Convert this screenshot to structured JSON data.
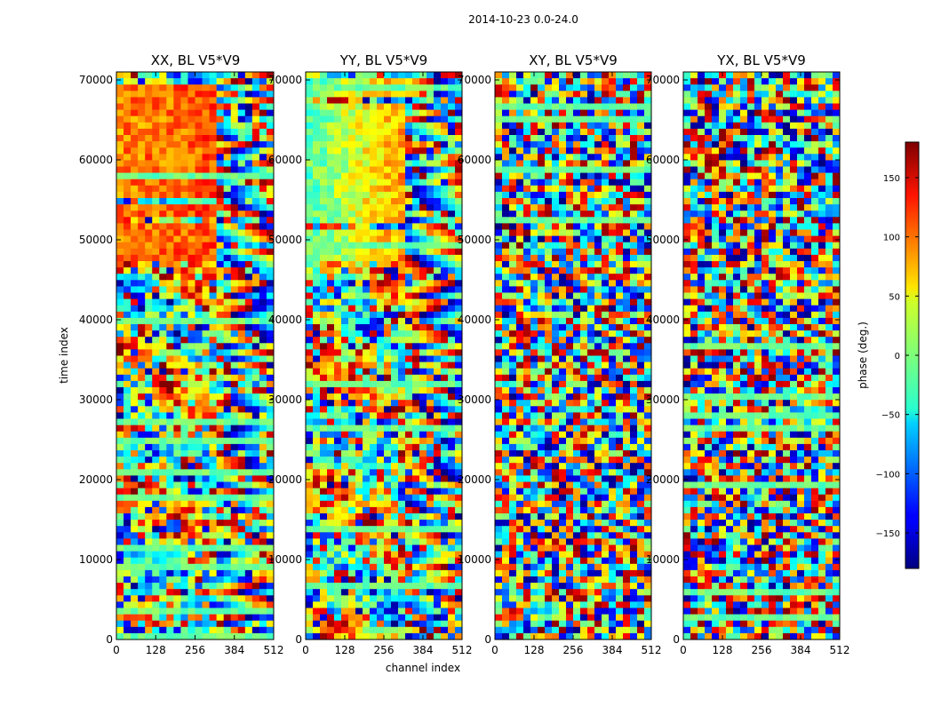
{
  "chart_data": {
    "type": "heatmap",
    "suptitle": "2014-10-23 0.0-24.0",
    "xlabel": "channel index",
    "ylabel": "time index",
    "xlim": [
      0,
      512
    ],
    "ylim": [
      0,
      71000
    ],
    "x_ticks": [
      0,
      128,
      256,
      384,
      512
    ],
    "y_ticks": [
      0,
      10000,
      20000,
      30000,
      40000,
      50000,
      60000,
      70000
    ],
    "panels": [
      {
        "title": "XX, BL V5*V9",
        "profile": "parallel",
        "palette_bias": "warm"
      },
      {
        "title": "YY, BL V5*V9",
        "profile": "parallel",
        "palette_bias": "cool"
      },
      {
        "title": "XY, BL V5*V9",
        "profile": "cross",
        "palette_bias": "noise"
      },
      {
        "title": "YX, BL V5*V9",
        "profile": "cross",
        "palette_bias": "noise"
      }
    ],
    "colorbar": {
      "label": "phase (deg.)",
      "range": [
        -180,
        180
      ],
      "ticks": [
        150,
        100,
        50,
        0,
        -50,
        -100,
        -150
      ],
      "tick_labels": [
        "150",
        "100",
        "50",
        "0",
        "−50",
        "−100",
        "−150"
      ],
      "colormap": "jet"
    }
  }
}
